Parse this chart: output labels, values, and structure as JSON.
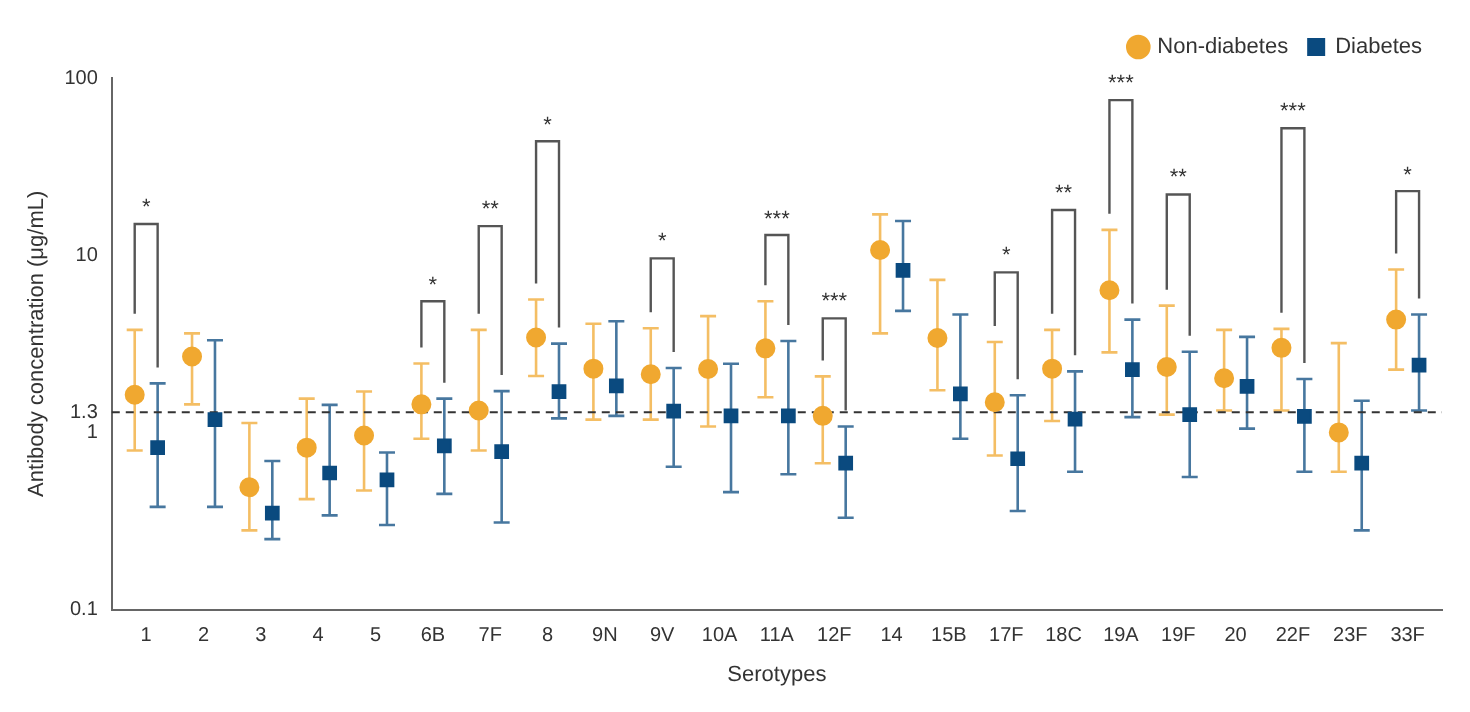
{
  "chart_data": {
    "type": "scatter",
    "xlabel": "Serotypes",
    "ylabel": "Antibody concentration (μg/mL)",
    "log": "y",
    "ylim": [
      0.1,
      100
    ],
    "yticks": [
      0.1,
      1,
      1.3,
      10,
      100
    ],
    "grid": false,
    "legend": "top right",
    "categories": [
      "1",
      "2",
      "3",
      "4",
      "5",
      "6B",
      "7F",
      "8",
      "9N",
      "9V",
      "10A",
      "11A",
      "12F",
      "14",
      "15B",
      "17F",
      "18C",
      "19A",
      "19F",
      "20",
      "22F",
      "23F",
      "33F"
    ],
    "series": [
      {
        "name": "Non-diabetes",
        "color": "#f0a830",
        "marker": "circle",
        "values": [
          1.63,
          2.68,
          0.49,
          0.82,
          0.96,
          1.44,
          1.33,
          3.43,
          2.29,
          2.13,
          2.28,
          2.98,
          1.24,
          10.7,
          3.41,
          1.48,
          2.29,
          6.34,
          2.34,
          2.02,
          3.0,
          1.0,
          4.33
        ],
        "errors": [
          [
            0.79,
            3.79
          ],
          [
            1.44,
            3.62
          ],
          [
            0.28,
            1.13
          ],
          [
            0.42,
            1.55
          ],
          [
            0.47,
            1.7
          ],
          [
            0.92,
            2.45
          ],
          [
            0.79,
            3.79
          ],
          [
            2.08,
            5.62
          ],
          [
            1.18,
            4.1
          ],
          [
            1.18,
            3.87
          ],
          [
            1.08,
            4.53
          ],
          [
            1.58,
            5.5
          ],
          [
            0.67,
            2.07
          ],
          [
            3.62,
            17
          ],
          [
            1.73,
            7.26
          ],
          [
            0.74,
            3.24
          ],
          [
            1.16,
            3.79
          ],
          [
            2.83,
            13.9
          ],
          [
            1.26,
            5.19
          ],
          [
            1.33,
            3.79
          ],
          [
            1.33,
            3.84
          ],
          [
            0.6,
            3.19
          ],
          [
            2.26,
            8.3
          ]
        ]
      },
      {
        "name": "Diabetes",
        "color": "#0a4a7f",
        "marker": "square",
        "values": [
          0.82,
          1.18,
          0.35,
          0.59,
          0.54,
          0.84,
          0.78,
          1.7,
          1.83,
          1.32,
          1.24,
          1.24,
          0.67,
          8.2,
          1.65,
          0.71,
          1.19,
          2.26,
          1.26,
          1.82,
          1.23,
          0.67,
          2.4
        ],
        "errors": [
          [
            0.38,
            1.89
          ],
          [
            0.38,
            3.31
          ],
          [
            0.25,
            0.69
          ],
          [
            0.34,
            1.43
          ],
          [
            0.3,
            0.77
          ],
          [
            0.45,
            1.55
          ],
          [
            0.31,
            1.71
          ],
          [
            1.2,
            3.17
          ],
          [
            1.24,
            4.24
          ],
          [
            0.64,
            2.31
          ],
          [
            0.46,
            2.44
          ],
          [
            0.58,
            3.28
          ],
          [
            0.33,
            1.08
          ],
          [
            4.85,
            15.6
          ],
          [
            0.92,
            4.63
          ],
          [
            0.36,
            1.62
          ],
          [
            0.6,
            2.21
          ],
          [
            1.22,
            4.33
          ],
          [
            0.56,
            2.85
          ],
          [
            1.05,
            3.46
          ],
          [
            0.6,
            2.0
          ],
          [
            0.28,
            1.51
          ],
          [
            1.33,
            4.63
          ]
        ]
      }
    ],
    "ref_lines": [
      {
        "axis": "y",
        "value": 1.3,
        "line_style": "dashed",
        "color": "#333333"
      }
    ],
    "annotations": [
      "*",
      "*",
      "**",
      "*",
      "*",
      "***",
      "***",
      "*",
      "**",
      "***",
      "**",
      "***",
      "*"
    ]
  }
}
